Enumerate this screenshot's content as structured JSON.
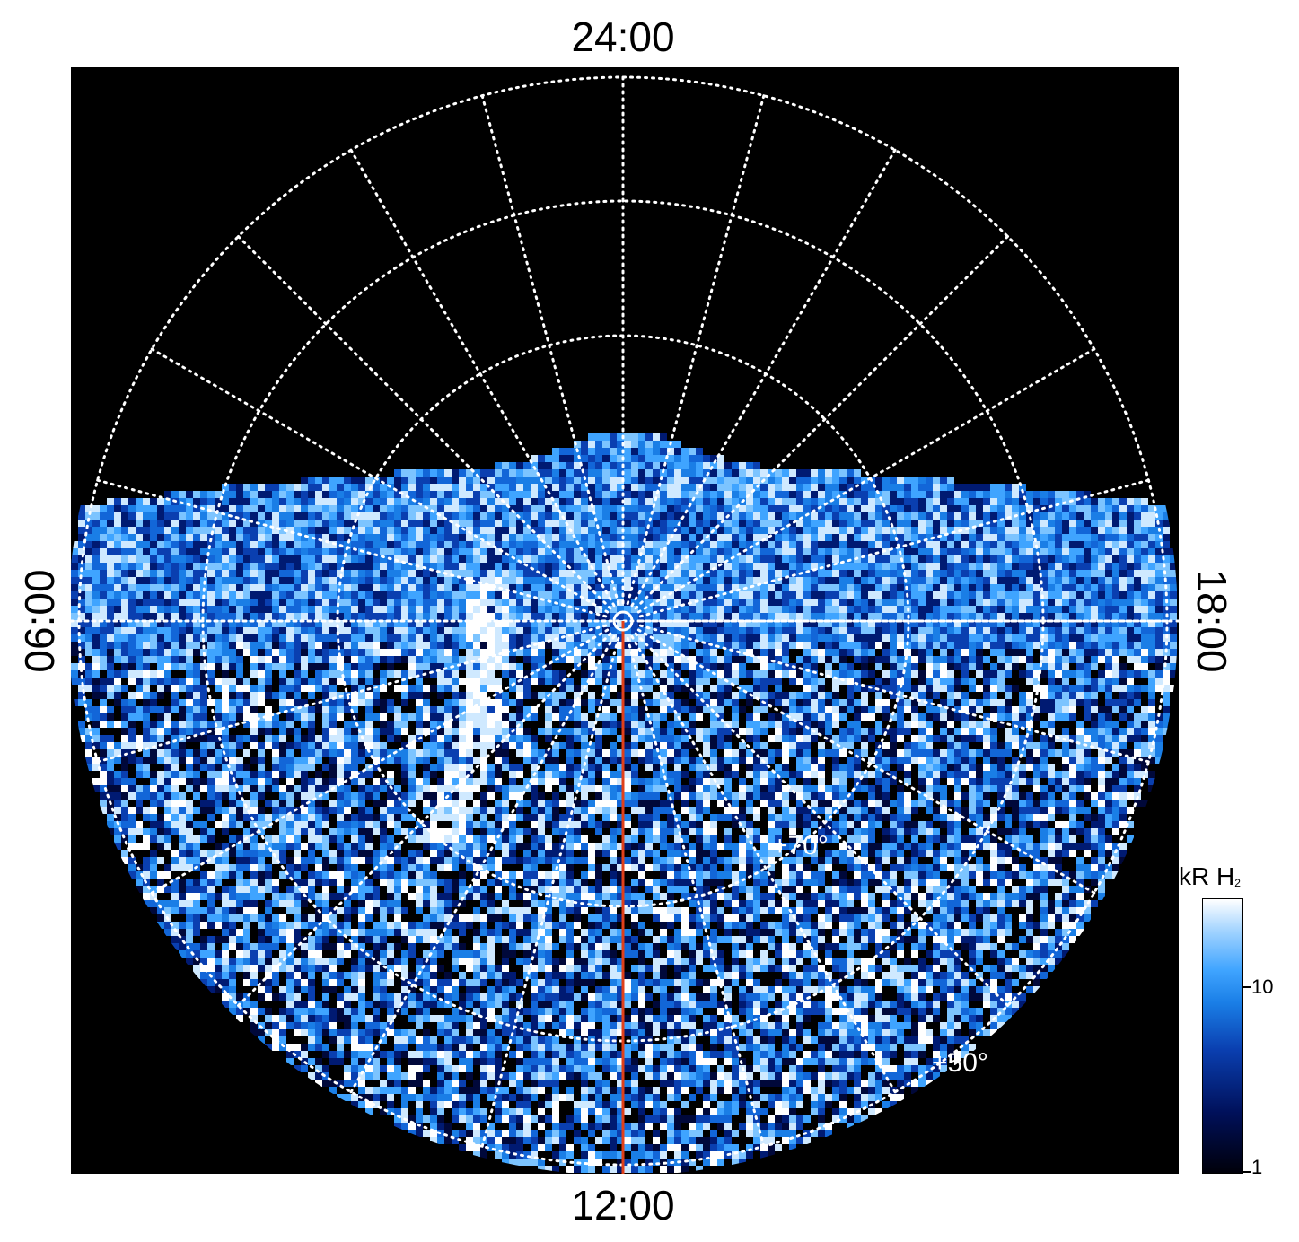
{
  "local_time_labels": {
    "top": "24:00",
    "bottom": "12:00",
    "left": "06:00",
    "right": "18:00"
  },
  "latitude_labels": {
    "inner": "+70°",
    "outer": "+50°"
  },
  "colorbar": {
    "title_main": "kR H",
    "title_sub": "2",
    "tick_labels": [
      "10",
      "1"
    ]
  },
  "colors": {
    "background": "#000000",
    "grid": "#ffffff",
    "meridian_line": "#e0401a",
    "emission_dark": "#00105a",
    "emission_mid": "#1a7ee6",
    "emission_bright": "#ffffff"
  }
}
